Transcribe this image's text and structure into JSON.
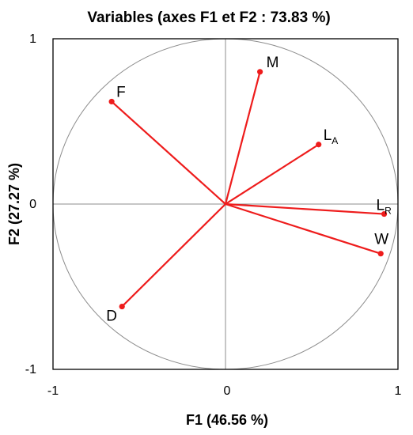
{
  "chart_data": {
    "type": "scatter",
    "subtype": "correlation-circle",
    "title": "Variables (axes F1 et F2 : 73.83 %)",
    "xlabel": "F1 (46.56 %)",
    "ylabel": "F2 (27.27 %)",
    "xlim": [
      -1,
      1
    ],
    "ylim": [
      -1,
      1
    ],
    "x_ticks": [
      "-1",
      "0",
      "1"
    ],
    "y_ticks": [
      "-1",
      "0",
      "1"
    ],
    "grid": false,
    "colors": {
      "vector": "#ee1c1c",
      "circle": "#8c8c8c",
      "axes": "#8c8c8c",
      "frame": "#000000"
    },
    "points": [
      {
        "label": "M",
        "sub": "",
        "x": 0.2,
        "y": 0.8
      },
      {
        "label": "F",
        "sub": "",
        "x": -0.66,
        "y": 0.62
      },
      {
        "label": "L",
        "sub": "A",
        "x": 0.54,
        "y": 0.36
      },
      {
        "label": "L",
        "sub": "R",
        "x": 0.92,
        "y": -0.06
      },
      {
        "label": "W",
        "sub": "",
        "x": 0.9,
        "y": -0.3
      },
      {
        "label": "D",
        "sub": "",
        "x": -0.6,
        "y": -0.62
      }
    ]
  }
}
